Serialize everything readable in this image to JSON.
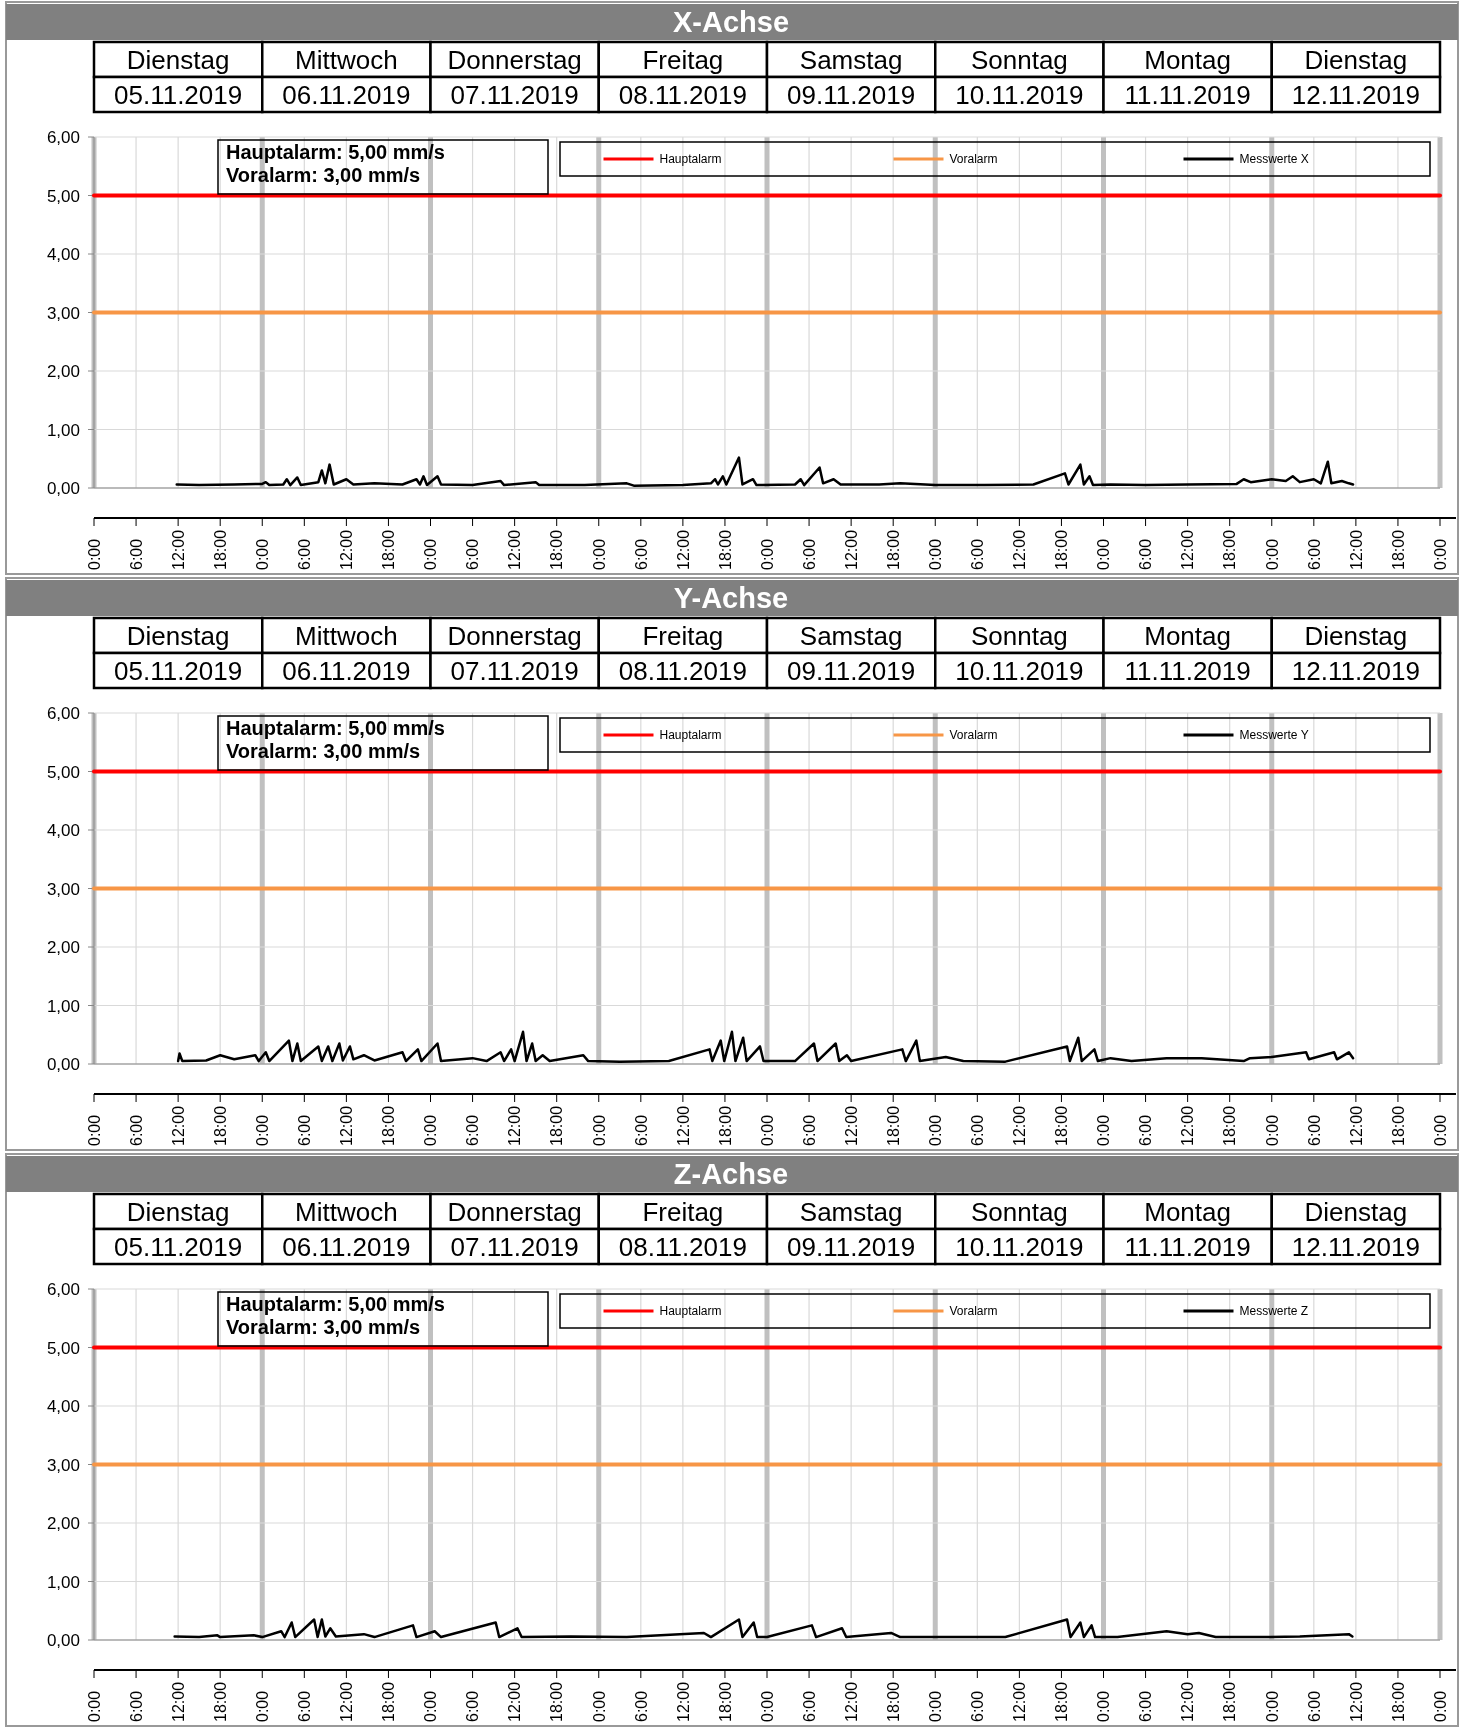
{
  "chart_data": [
    {
      "type": "line",
      "title": "X-Achse",
      "xlim": [
        "2019-11-05T00:00",
        "2019-11-13T00:00"
      ],
      "ylim": [
        0,
        6
      ],
      "grid": true,
      "legend": "top right",
      "xticks": [
        {
          "value": "2019-11-05T00:00",
          "label": "0:00"
        },
        {
          "value": "2019-11-05T06:00",
          "label": "6:00"
        },
        {
          "value": "2019-11-05T12:00",
          "label": "12:00"
        },
        {
          "value": "2019-11-05T18:00",
          "label": "18:00"
        },
        {
          "value": "2019-11-06T00:00",
          "label": "0:00"
        },
        {
          "value": "2019-11-06T06:00",
          "label": "6:00"
        },
        {
          "value": "2019-11-06T12:00",
          "label": "12:00"
        },
        {
          "value": "2019-11-06T18:00",
          "label": "18:00"
        },
        {
          "value": "2019-11-07T00:00",
          "label": "0:00"
        },
        {
          "value": "2019-11-07T06:00",
          "label": "6:00"
        },
        {
          "value": "2019-11-07T12:00",
          "label": "12:00"
        },
        {
          "value": "2019-11-07T18:00",
          "label": "18:00"
        },
        {
          "value": "2019-11-08T00:00",
          "label": "0:00"
        },
        {
          "value": "2019-11-08T06:00",
          "label": "6:00"
        },
        {
          "value": "2019-11-08T12:00",
          "label": "12:00"
        },
        {
          "value": "2019-11-08T18:00",
          "label": "18:00"
        },
        {
          "value": "2019-11-09T00:00",
          "label": "0:00"
        },
        {
          "value": "2019-11-09T06:00",
          "label": "6:00"
        },
        {
          "value": "2019-11-09T12:00",
          "label": "12:00"
        },
        {
          "value": "2019-11-09T18:00",
          "label": "18:00"
        },
        {
          "value": "2019-11-10T00:00",
          "label": "0:00"
        },
        {
          "value": "2019-11-10T06:00",
          "label": "6:00"
        },
        {
          "value": "2019-11-10T12:00",
          "label": "12:00"
        },
        {
          "value": "2019-11-10T18:00",
          "label": "18:00"
        },
        {
          "value": "2019-11-11T00:00",
          "label": "0:00"
        },
        {
          "value": "2019-11-11T06:00",
          "label": "6:00"
        },
        {
          "value": "2019-11-11T12:00",
          "label": "12:00"
        },
        {
          "value": "2019-11-11T18:00",
          "label": "18:00"
        },
        {
          "value": "2019-11-12T00:00",
          "label": "0:00"
        },
        {
          "value": "2019-11-12T06:00",
          "label": "6:00"
        },
        {
          "value": "2019-11-12T12:00",
          "label": "12:00"
        },
        {
          "value": "2019-11-12T18:00",
          "label": "18:00"
        },
        {
          "value": "2019-11-13T00:00",
          "label": "0:00"
        }
      ],
      "yticks": [
        {
          "value": 0,
          "label": "0,00"
        },
        {
          "value": 1,
          "label": "1,00"
        },
        {
          "value": 2,
          "label": "2,00"
        },
        {
          "value": 3,
          "label": "3,00"
        },
        {
          "value": 4,
          "label": "4,00"
        },
        {
          "value": 5,
          "label": "5,00"
        },
        {
          "value": 6,
          "label": "6,00"
        }
      ],
      "annotations": [
        "Dienstag",
        "Mittwoch",
        "Donnerstag",
        "Freitag",
        "Samstag",
        "Sonntag",
        "Montag",
        "Dienstag",
        "05.11.2019",
        "06.11.2019",
        "07.11.2019",
        "08.11.2019",
        "09.11.2019",
        "10.11.2019",
        "11.11.2019",
        "12.11.2019",
        "Hauptalarm: 5,00 mm/s",
        "Voralarm: 3,00 mm/s"
      ],
      "series": [
        {
          "name": "Hauptalarm",
          "color": "#ff0000",
          "x": [
            "2019-11-05T00:00",
            "2019-11-13T00:00"
          ],
          "values": [
            5,
            5
          ]
        },
        {
          "name": "Voralarm",
          "color": "#f79646",
          "x": [
            "2019-11-05T00:00",
            "2019-11-13T00:00"
          ],
          "values": [
            3,
            3
          ]
        },
        {
          "name": "Messwerte X",
          "color": "#000000",
          "x": [
            "2019-11-05T11:48",
            "2019-11-05T15:00",
            "2019-11-05T20:00",
            "2019-11-06T00:00",
            "2019-11-06T00:30",
            "2019-11-06T01:00",
            "2019-11-06T03:00",
            "2019-11-06T03:30",
            "2019-11-06T04:00",
            "2019-11-06T05:00",
            "2019-11-06T05:30",
            "2019-11-06T08:00",
            "2019-11-06T08:30",
            "2019-11-06T09:00",
            "2019-11-06T09:36",
            "2019-11-06T10:12",
            "2019-11-06T12:00",
            "2019-11-06T13:00",
            "2019-11-06T16:00",
            "2019-11-06T20:00",
            "2019-11-06T22:00",
            "2019-11-06T22:30",
            "2019-11-06T23:00",
            "2019-11-06T23:30",
            "2019-11-07T01:00",
            "2019-11-07T01:30",
            "2019-11-07T06:00",
            "2019-11-07T10:00",
            "2019-11-07T10:30",
            "2019-11-07T15:00",
            "2019-11-07T15:30",
            "2019-11-07T22:00",
            "2019-11-08T04:00",
            "2019-11-08T05:00",
            "2019-11-08T12:00",
            "2019-11-08T16:00",
            "2019-11-08T16:36",
            "2019-11-08T17:00",
            "2019-11-08T17:42",
            "2019-11-08T18:12",
            "2019-11-08T20:00",
            "2019-11-08T20:30",
            "2019-11-08T22:00",
            "2019-11-08T22:30",
            "2019-11-09T04:00",
            "2019-11-09T04:48",
            "2019-11-09T05:18",
            "2019-11-09T07:30",
            "2019-11-09T08:00",
            "2019-11-09T09:30",
            "2019-11-09T10:30",
            "2019-11-09T16:00",
            "2019-11-09T19:00",
            "2019-11-10T00:00",
            "2019-11-10T07:00",
            "2019-11-10T14:00",
            "2019-11-10T18:30",
            "2019-11-10T19:00",
            "2019-11-10T20:42",
            "2019-11-10T21:12",
            "2019-11-10T22:00",
            "2019-11-10T22:30",
            "2019-11-11T01:00",
            "2019-11-11T06:00",
            "2019-11-11T12:00",
            "2019-11-11T19:00",
            "2019-11-11T20:00",
            "2019-11-11T21:00",
            "2019-11-12T00:00",
            "2019-11-12T02:00",
            "2019-11-12T03:00",
            "2019-11-12T04:00",
            "2019-11-12T06:00",
            "2019-11-12T07:00",
            "2019-11-12T08:00",
            "2019-11-12T08:30",
            "2019-11-12T10:00",
            "2019-11-12T11:00",
            "2019-11-12T11:36"
          ],
          "values": [
            0.06,
            0.05,
            0.06,
            0.07,
            0.1,
            0.05,
            0.06,
            0.15,
            0.05,
            0.18,
            0.05,
            0.1,
            0.3,
            0.08,
            0.4,
            0.06,
            0.15,
            0.06,
            0.08,
            0.06,
            0.15,
            0.06,
            0.2,
            0.05,
            0.2,
            0.06,
            0.05,
            0.12,
            0.05,
            0.1,
            0.05,
            0.05,
            0.08,
            0.04,
            0.05,
            0.08,
            0.15,
            0.06,
            0.2,
            0.06,
            0.52,
            0.06,
            0.15,
            0.05,
            0.06,
            0.15,
            0.05,
            0.35,
            0.08,
            0.15,
            0.06,
            0.06,
            0.08,
            0.05,
            0.05,
            0.06,
            0.25,
            0.06,
            0.4,
            0.06,
            0.2,
            0.05,
            0.06,
            0.05,
            0.06,
            0.07,
            0.15,
            0.1,
            0.15,
            0.12,
            0.2,
            0.1,
            0.15,
            0.08,
            0.45,
            0.08,
            0.12,
            0.08,
            0.06
          ]
        }
      ]
    },
    {
      "type": "line",
      "title": "Y-Achse",
      "xlim": [
        "2019-11-05T00:00",
        "2019-11-13T00:00"
      ],
      "ylim": [
        0,
        6
      ],
      "grid": true,
      "legend": "top right",
      "xticks": [
        {
          "value": "2019-11-05T00:00",
          "label": "0:00"
        },
        {
          "value": "2019-11-05T06:00",
          "label": "6:00"
        },
        {
          "value": "2019-11-05T12:00",
          "label": "12:00"
        },
        {
          "value": "2019-11-05T18:00",
          "label": "18:00"
        },
        {
          "value": "2019-11-06T00:00",
          "label": "0:00"
        },
        {
          "value": "2019-11-06T06:00",
          "label": "6:00"
        },
        {
          "value": "2019-11-06T12:00",
          "label": "12:00"
        },
        {
          "value": "2019-11-06T18:00",
          "label": "18:00"
        },
        {
          "value": "2019-11-07T00:00",
          "label": "0:00"
        },
        {
          "value": "2019-11-07T06:00",
          "label": "6:00"
        },
        {
          "value": "2019-11-07T12:00",
          "label": "12:00"
        },
        {
          "value": "2019-11-07T18:00",
          "label": "18:00"
        },
        {
          "value": "2019-11-08T00:00",
          "label": "0:00"
        },
        {
          "value": "2019-11-08T06:00",
          "label": "6:00"
        },
        {
          "value": "2019-11-08T12:00",
          "label": "12:00"
        },
        {
          "value": "2019-11-08T18:00",
          "label": "18:00"
        },
        {
          "value": "2019-11-09T00:00",
          "label": "0:00"
        },
        {
          "value": "2019-11-09T06:00",
          "label": "6:00"
        },
        {
          "value": "2019-11-09T12:00",
          "label": "12:00"
        },
        {
          "value": "2019-11-09T18:00",
          "label": "18:00"
        },
        {
          "value": "2019-11-10T00:00",
          "label": "0:00"
        },
        {
          "value": "2019-11-10T06:00",
          "label": "6:00"
        },
        {
          "value": "2019-11-10T12:00",
          "label": "12:00"
        },
        {
          "value": "2019-11-10T18:00",
          "label": "18:00"
        },
        {
          "value": "2019-11-11T00:00",
          "label": "0:00"
        },
        {
          "value": "2019-11-11T06:00",
          "label": "6:00"
        },
        {
          "value": "2019-11-11T12:00",
          "label": "12:00"
        },
        {
          "value": "2019-11-11T18:00",
          "label": "18:00"
        },
        {
          "value": "2019-11-12T00:00",
          "label": "0:00"
        },
        {
          "value": "2019-11-12T06:00",
          "label": "6:00"
        },
        {
          "value": "2019-11-12T12:00",
          "label": "12:00"
        },
        {
          "value": "2019-11-12T18:00",
          "label": "18:00"
        },
        {
          "value": "2019-11-13T00:00",
          "label": "0:00"
        }
      ],
      "yticks": [
        {
          "value": 0,
          "label": "0,00"
        },
        {
          "value": 1,
          "label": "1,00"
        },
        {
          "value": 2,
          "label": "2,00"
        },
        {
          "value": 3,
          "label": "3,00"
        },
        {
          "value": 4,
          "label": "4,00"
        },
        {
          "value": 5,
          "label": "5,00"
        },
        {
          "value": 6,
          "label": "6,00"
        }
      ],
      "annotations": [
        "Dienstag",
        "Mittwoch",
        "Donnerstag",
        "Freitag",
        "Samstag",
        "Sonntag",
        "Montag",
        "Dienstag",
        "05.11.2019",
        "06.11.2019",
        "07.11.2019",
        "08.11.2019",
        "09.11.2019",
        "10.11.2019",
        "11.11.2019",
        "12.11.2019",
        "Hauptalarm: 5,00 mm/s",
        "Voralarm: 3,00 mm/s"
      ],
      "series": [
        {
          "name": "Hauptalarm",
          "color": "#ff0000",
          "x": [
            "2019-11-05T00:00",
            "2019-11-13T00:00"
          ],
          "values": [
            5,
            5
          ]
        },
        {
          "name": "Voralarm",
          "color": "#f79646",
          "x": [
            "2019-11-05T00:00",
            "2019-11-13T00:00"
          ],
          "values": [
            3,
            3
          ]
        },
        {
          "name": "Messwerte Y",
          "color": "#000000",
          "x": [
            "2019-11-05T12:00",
            "2019-11-05T12:12",
            "2019-11-05T12:36",
            "2019-11-05T16:00",
            "2019-11-05T18:00",
            "2019-11-05T20:00",
            "2019-11-05T23:00",
            "2019-11-05T23:30",
            "2019-11-06T00:30",
            "2019-11-06T01:00",
            "2019-11-06T03:48",
            "2019-11-06T04:18",
            "2019-11-06T05:00",
            "2019-11-06T05:30",
            "2019-11-06T08:00",
            "2019-11-06T08:30",
            "2019-11-06T09:24",
            "2019-11-06T10:00",
            "2019-11-06T11:00",
            "2019-11-06T11:30",
            "2019-11-06T12:30",
            "2019-11-06T13:00",
            "2019-11-06T14:30",
            "2019-11-06T16:00",
            "2019-11-06T20:00",
            "2019-11-06T20:30",
            "2019-11-06T22:12",
            "2019-11-06T22:42",
            "2019-11-07T01:00",
            "2019-11-07T01:30",
            "2019-11-07T06:00",
            "2019-11-07T08:00",
            "2019-11-07T10:00",
            "2019-11-07T10:30",
            "2019-11-07T11:30",
            "2019-11-07T12:00",
            "2019-11-07T13:12",
            "2019-11-07T13:42",
            "2019-11-07T14:30",
            "2019-11-07T15:00",
            "2019-11-07T16:00",
            "2019-11-07T17:00",
            "2019-11-07T21:48",
            "2019-11-07T22:30",
            "2019-11-08T03:00",
            "2019-11-08T10:00",
            "2019-11-08T15:48",
            "2019-11-08T16:12",
            "2019-11-08T17:24",
            "2019-11-08T17:54",
            "2019-11-08T19:00",
            "2019-11-08T19:30",
            "2019-11-08T20:36",
            "2019-11-08T21:06",
            "2019-11-08T23:00",
            "2019-11-08T23:30",
            "2019-11-09T04:00",
            "2019-11-09T06:42",
            "2019-11-09T07:12",
            "2019-11-09T09:48",
            "2019-11-09T10:18",
            "2019-11-09T11:24",
            "2019-11-09T12:00",
            "2019-11-09T19:18",
            "2019-11-09T19:48",
            "2019-11-09T21:18",
            "2019-11-09T21:48",
            "2019-11-10T01:30",
            "2019-11-10T04:00",
            "2019-11-10T10:00",
            "2019-11-10T18:48",
            "2019-11-10T19:12",
            "2019-11-10T20:24",
            "2019-11-10T20:54",
            "2019-11-10T22:42",
            "2019-11-10T23:12",
            "2019-11-11T01:00",
            "2019-11-11T04:00",
            "2019-11-11T09:00",
            "2019-11-11T14:00",
            "2019-11-11T20:00",
            "2019-11-11T20:54",
            "2019-11-12T00:00",
            "2019-11-12T04:54",
            "2019-11-12T05:18",
            "2019-11-12T08:54",
            "2019-11-12T09:18",
            "2019-11-12T11:00",
            "2019-11-12T11:36"
          ],
          "values": [
            0.05,
            0.18,
            0.05,
            0.06,
            0.15,
            0.08,
            0.15,
            0.05,
            0.2,
            0.05,
            0.4,
            0.05,
            0.35,
            0.05,
            0.3,
            0.05,
            0.3,
            0.05,
            0.35,
            0.06,
            0.3,
            0.08,
            0.15,
            0.06,
            0.2,
            0.05,
            0.25,
            0.05,
            0.35,
            0.05,
            0.1,
            0.05,
            0.2,
            0.05,
            0.25,
            0.05,
            0.55,
            0.05,
            0.35,
            0.05,
            0.15,
            0.05,
            0.15,
            0.05,
            0.04,
            0.05,
            0.25,
            0.05,
            0.4,
            0.05,
            0.55,
            0.05,
            0.45,
            0.05,
            0.3,
            0.05,
            0.05,
            0.35,
            0.05,
            0.35,
            0.05,
            0.15,
            0.05,
            0.25,
            0.05,
            0.4,
            0.05,
            0.12,
            0.05,
            0.04,
            0.3,
            0.05,
            0.45,
            0.05,
            0.25,
            0.05,
            0.1,
            0.05,
            0.1,
            0.1,
            0.05,
            0.1,
            0.12,
            0.2,
            0.08,
            0.2,
            0.08,
            0.2,
            0.1
          ]
        }
      ]
    },
    {
      "type": "line",
      "title": "Z-Achse",
      "xlim": [
        "2019-11-05T00:00",
        "2019-11-13T00:00"
      ],
      "ylim": [
        0,
        6
      ],
      "grid": true,
      "legend": "top right",
      "xticks": [
        {
          "value": "2019-11-05T00:00",
          "label": "0:00"
        },
        {
          "value": "2019-11-05T06:00",
          "label": "6:00"
        },
        {
          "value": "2019-11-05T12:00",
          "label": "12:00"
        },
        {
          "value": "2019-11-05T18:00",
          "label": "18:00"
        },
        {
          "value": "2019-11-06T00:00",
          "label": "0:00"
        },
        {
          "value": "2019-11-06T06:00",
          "label": "6:00"
        },
        {
          "value": "2019-11-06T12:00",
          "label": "12:00"
        },
        {
          "value": "2019-11-06T18:00",
          "label": "18:00"
        },
        {
          "value": "2019-11-07T00:00",
          "label": "0:00"
        },
        {
          "value": "2019-11-07T06:00",
          "label": "6:00"
        },
        {
          "value": "2019-11-07T12:00",
          "label": "12:00"
        },
        {
          "value": "2019-11-07T18:00",
          "label": "18:00"
        },
        {
          "value": "2019-11-08T00:00",
          "label": "0:00"
        },
        {
          "value": "2019-11-08T06:00",
          "label": "6:00"
        },
        {
          "value": "2019-11-08T12:00",
          "label": "12:00"
        },
        {
          "value": "2019-11-08T18:00",
          "label": "18:00"
        },
        {
          "value": "2019-11-09T00:00",
          "label": "0:00"
        },
        {
          "value": "2019-11-09T06:00",
          "label": "6:00"
        },
        {
          "value": "2019-11-09T12:00",
          "label": "12:00"
        },
        {
          "value": "2019-11-09T18:00",
          "label": "18:00"
        },
        {
          "value": "2019-11-10T00:00",
          "label": "0:00"
        },
        {
          "value": "2019-11-10T06:00",
          "label": "6:00"
        },
        {
          "value": "2019-11-10T12:00",
          "label": "12:00"
        },
        {
          "value": "2019-11-10T18:00",
          "label": "18:00"
        },
        {
          "value": "2019-11-11T00:00",
          "label": "0:00"
        },
        {
          "value": "2019-11-11T06:00",
          "label": "6:00"
        },
        {
          "value": "2019-11-11T12:00",
          "label": "12:00"
        },
        {
          "value": "2019-11-11T18:00",
          "label": "18:00"
        },
        {
          "value": "2019-11-12T00:00",
          "label": "0:00"
        },
        {
          "value": "2019-11-12T06:00",
          "label": "6:00"
        },
        {
          "value": "2019-11-12T12:00",
          "label": "12:00"
        },
        {
          "value": "2019-11-12T18:00",
          "label": "18:00"
        },
        {
          "value": "2019-11-13T00:00",
          "label": "0:00"
        }
      ],
      "yticks": [
        {
          "value": 0,
          "label": "0,00"
        },
        {
          "value": 1,
          "label": "1,00"
        },
        {
          "value": 2,
          "label": "2,00"
        },
        {
          "value": 3,
          "label": "3,00"
        },
        {
          "value": 4,
          "label": "4,00"
        },
        {
          "value": 5,
          "label": "5,00"
        },
        {
          "value": 6,
          "label": "6,00"
        }
      ],
      "annotations": [
        "Dienstag",
        "Mittwoch",
        "Donnerstag",
        "Freitag",
        "Samstag",
        "Sonntag",
        "Montag",
        "Dienstag",
        "05.11.2019",
        "06.11.2019",
        "07.11.2019",
        "08.11.2019",
        "09.11.2019",
        "10.11.2019",
        "11.11.2019",
        "12.11.2019",
        "Hauptalarm: 5,00 mm/s",
        "Voralarm: 3,00 mm/s"
      ],
      "series": [
        {
          "name": "Hauptalarm",
          "color": "#ff0000",
          "x": [
            "2019-11-05T00:00",
            "2019-11-13T00:00"
          ],
          "values": [
            5,
            5
          ]
        },
        {
          "name": "Voralarm",
          "color": "#f79646",
          "x": [
            "2019-11-05T00:00",
            "2019-11-13T00:00"
          ],
          "values": [
            3,
            3
          ]
        },
        {
          "name": "Messwerte Z",
          "color": "#000000",
          "x": [
            "2019-11-05T11:30",
            "2019-11-05T15:00",
            "2019-11-05T17:36",
            "2019-11-05T18:00",
            "2019-11-05T22:48",
            "2019-11-06T00:00",
            "2019-11-06T02:42",
            "2019-11-06T03:12",
            "2019-11-06T04:12",
            "2019-11-06T04:42",
            "2019-11-06T07:24",
            "2019-11-06T07:54",
            "2019-11-06T08:30",
            "2019-11-06T09:00",
            "2019-11-06T09:42",
            "2019-11-06T10:30",
            "2019-11-06T14:30",
            "2019-11-06T16:00",
            "2019-11-06T21:30",
            "2019-11-06T22:00",
            "2019-11-07T00:36",
            "2019-11-07T01:30",
            "2019-11-07T09:18",
            "2019-11-07T09:48",
            "2019-11-07T12:24",
            "2019-11-07T13:00",
            "2019-11-07T20:00",
            "2019-11-08T04:00",
            "2019-11-08T15:00",
            "2019-11-08T16:00",
            "2019-11-08T20:00",
            "2019-11-08T20:30",
            "2019-11-08T22:06",
            "2019-11-08T22:36",
            "2019-11-09T00:00",
            "2019-11-09T06:24",
            "2019-11-09T07:00",
            "2019-11-09T10:42",
            "2019-11-09T11:18",
            "2019-11-09T17:42",
            "2019-11-09T19:00",
            "2019-11-10T04:00",
            "2019-11-10T10:00",
            "2019-11-10T18:48",
            "2019-11-10T19:18",
            "2019-11-10T20:42",
            "2019-11-10T21:12",
            "2019-11-10T22:18",
            "2019-11-10T22:48",
            "2019-11-11T02:00",
            "2019-11-11T09:00",
            "2019-11-11T12:00",
            "2019-11-11T13:36",
            "2019-11-11T16:00",
            "2019-11-11T23:00",
            "2019-11-12T04:00",
            "2019-11-12T11:00",
            "2019-11-12T11:30"
          ],
          "values": [
            0.06,
            0.05,
            0.08,
            0.05,
            0.08,
            0.05,
            0.15,
            0.05,
            0.3,
            0.05,
            0.35,
            0.05,
            0.35,
            0.06,
            0.2,
            0.06,
            0.1,
            0.05,
            0.25,
            0.05,
            0.15,
            0.05,
            0.3,
            0.05,
            0.2,
            0.05,
            0.06,
            0.05,
            0.12,
            0.05,
            0.35,
            0.05,
            0.3,
            0.05,
            0.05,
            0.25,
            0.05,
            0.2,
            0.05,
            0.12,
            0.05,
            0.05,
            0.05,
            0.35,
            0.05,
            0.3,
            0.05,
            0.25,
            0.05,
            0.05,
            0.15,
            0.1,
            0.12,
            0.05,
            0.05,
            0.06,
            0.1,
            0.06
          ]
        }
      ]
    }
  ]
}
